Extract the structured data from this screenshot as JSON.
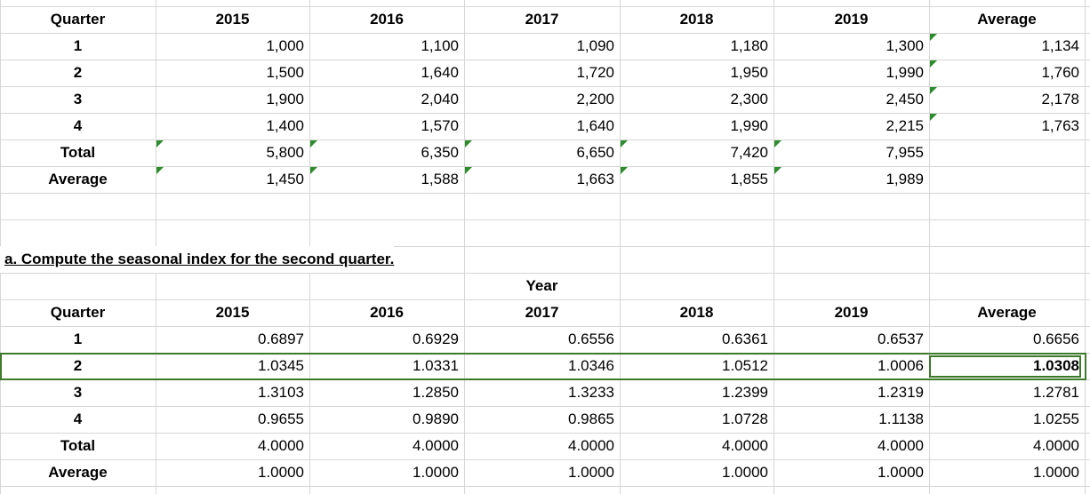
{
  "table1": {
    "header": [
      "Quarter",
      "2015",
      "2016",
      "2017",
      "2018",
      "2019",
      "Average"
    ],
    "rows": [
      [
        "1",
        "1,000",
        "1,100",
        "1,090",
        "1,180",
        "1,300",
        "1,134"
      ],
      [
        "2",
        "1,500",
        "1,640",
        "1,720",
        "1,950",
        "1,990",
        "1,760"
      ],
      [
        "3",
        "1,900",
        "2,040",
        "2,200",
        "2,300",
        "2,450",
        "2,178"
      ],
      [
        "4",
        "1,400",
        "1,570",
        "1,640",
        "1,990",
        "2,215",
        "1,763"
      ],
      [
        "Total",
        "5,800",
        "6,350",
        "6,650",
        "7,420",
        "7,955"
      ],
      [
        "Average",
        "1,450",
        "1,588",
        "1,663",
        "1,855",
        "1,989"
      ]
    ]
  },
  "question": "a. Compute the seasonal index for the second quarter.",
  "table2": {
    "group_header": "Year",
    "header": [
      "Quarter",
      "2015",
      "2016",
      "2017",
      "2018",
      "2019",
      "Average"
    ],
    "rows": [
      [
        "1",
        "0.6897",
        "0.6929",
        "0.6556",
        "0.6361",
        "0.6537",
        "0.6656"
      ],
      [
        "2",
        "1.0345",
        "1.0331",
        "1.0346",
        "1.0512",
        "1.0006",
        "1.0308"
      ],
      [
        "3",
        "1.3103",
        "1.2850",
        "1.3233",
        "1.2399",
        "1.2319",
        "1.2781"
      ],
      [
        "4",
        "0.9655",
        "0.9890",
        "0.9865",
        "1.0728",
        "1.1138",
        "1.0255"
      ],
      [
        "Total",
        "4.0000",
        "4.0000",
        "4.0000",
        "4.0000",
        "4.0000",
        "4.0000"
      ],
      [
        "Average",
        "1.0000",
        "1.0000",
        "1.0000",
        "1.0000",
        "1.0000",
        "1.0000"
      ]
    ]
  }
}
